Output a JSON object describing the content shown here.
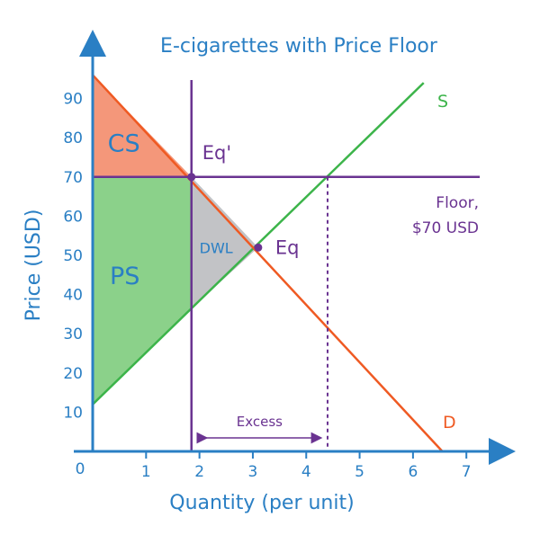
{
  "colors": {
    "axis": "#2a7fc4",
    "supply": "#3cb44a",
    "demand": "#ef5a23",
    "floor": "#6a3391",
    "cs_fill": "#f4977a",
    "ps_fill": "#8bd18a",
    "dwl_fill": "#c2c3c6",
    "text_blue": "#2a7fc4",
    "text_purple": "#6a3391"
  },
  "chart_data": {
    "type": "line",
    "title": "E-cigarettes with Price Floor",
    "xlabel": "Quantity (per unit)",
    "ylabel": "Price (USD)",
    "xlim": [
      0,
      7.3
    ],
    "ylim": [
      0,
      100
    ],
    "x_ticks": [
      1,
      2,
      3,
      4,
      5,
      6,
      7
    ],
    "y_ticks": [
      10,
      20,
      30,
      40,
      50,
      60,
      70,
      80,
      90
    ],
    "origin_label": "0",
    "grid": false,
    "series": [
      {
        "name": "S",
        "type": "line",
        "points": [
          [
            0,
            12
          ],
          [
            6.2,
            94
          ]
        ]
      },
      {
        "name": "D",
        "type": "line",
        "points": [
          [
            0,
            96
          ],
          [
            6.55,
            0
          ]
        ]
      }
    ],
    "floor": {
      "price": 70,
      "label_line1": "Floor,",
      "label_line2": "$70 USD"
    },
    "quantity_line": {
      "x": 1.85
    },
    "excess_line": {
      "x": 4.4
    },
    "points": [
      {
        "name": "Eq'",
        "x": 1.85,
        "y": 70
      },
      {
        "name": "Eq",
        "x": 3.1,
        "y": 52
      }
    ],
    "regions": [
      {
        "name": "CS",
        "polygon": [
          [
            0,
            96
          ],
          [
            1.85,
            70
          ],
          [
            0,
            70
          ]
        ]
      },
      {
        "name": "PS",
        "polygon": [
          [
            0,
            70
          ],
          [
            1.85,
            70
          ],
          [
            1.85,
            36.5
          ],
          [
            0,
            12
          ]
        ]
      },
      {
        "name": "DWL",
        "polygon": [
          [
            1.85,
            70
          ],
          [
            3.1,
            52
          ],
          [
            1.85,
            36.5
          ]
        ]
      }
    ],
    "annotations": {
      "excess": "Excess",
      "supply_label": "S",
      "demand_label": "D"
    }
  }
}
